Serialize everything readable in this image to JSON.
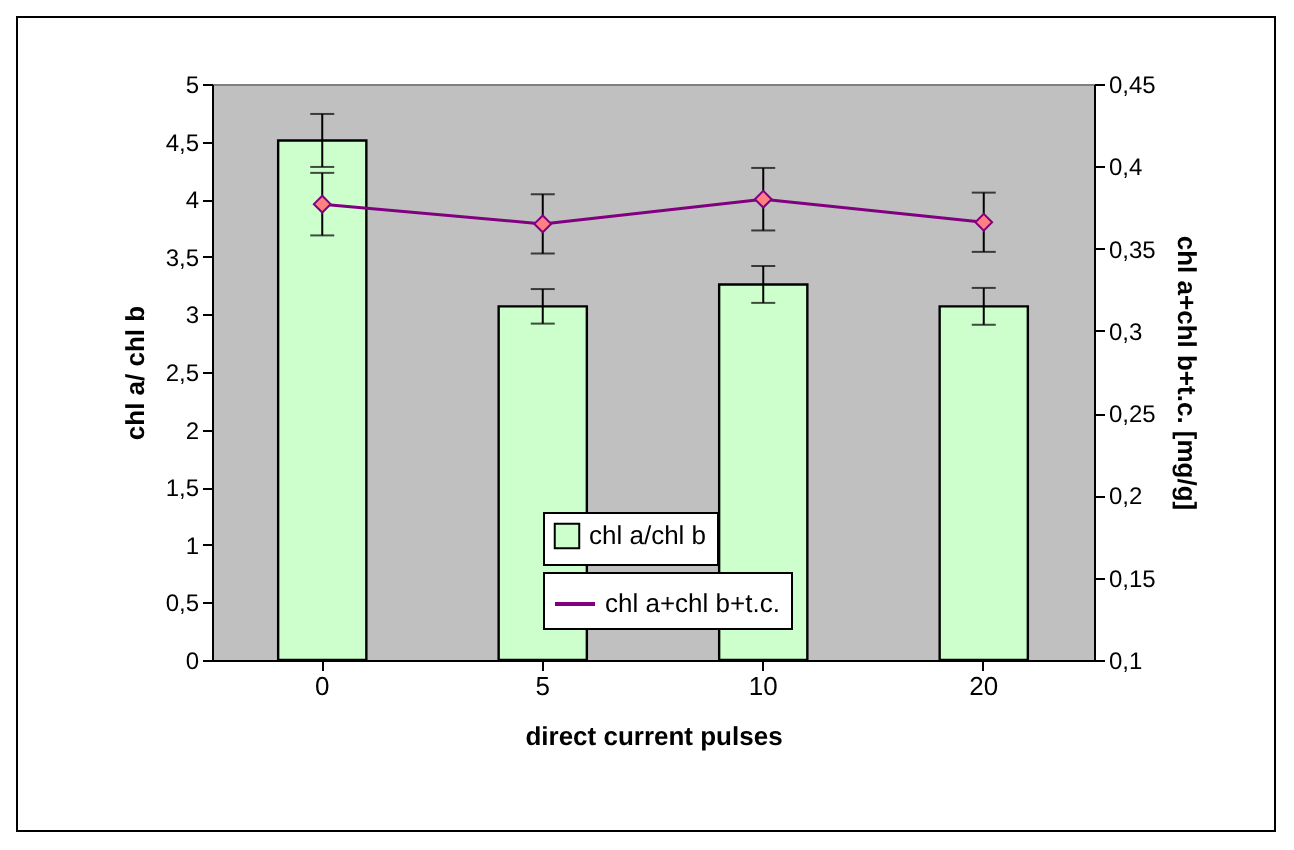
{
  "chart_data": {
    "type": "bar",
    "xlabel": "direct current pulses",
    "ylabel": "chl a/ chl b",
    "y2label": "chl a+chl b+t.c. [mg/g]",
    "categories": [
      "0",
      "5",
      "10",
      "20"
    ],
    "series": [
      {
        "name": "chl a/chl b",
        "color": "#ccffcc",
        "values": [
          4.51,
          3.07,
          3.26,
          3.07
        ],
        "errors": [
          0.23,
          0.15,
          0.16,
          0.16
        ]
      },
      {
        "name": "chl a+chl b+t.c.",
        "type": "line",
        "axis": "y2",
        "color": "#800080",
        "values": [
          0.377,
          0.365,
          0.38,
          0.366
        ],
        "errors": [
          0.019,
          0.018,
          0.019,
          0.018
        ]
      }
    ],
    "ylim": [
      0,
      5
    ],
    "yticks": [
      0,
      {
        "value": 0.5,
        "label": "0,5"
      },
      1,
      {
        "value": 1.5,
        "label": "1,5"
      },
      2,
      {
        "value": 2.5,
        "label": "2,5"
      },
      3,
      {
        "value": 3.5,
        "label": "3,5"
      },
      4,
      {
        "value": 4.5,
        "label": "4,5"
      },
      5
    ],
    "y2lim": [
      0.1,
      0.45
    ],
    "y2ticks": [
      {
        "value": 0.1,
        "label": "0,1"
      },
      {
        "value": 0.15,
        "label": "0,15"
      },
      {
        "value": 0.2,
        "label": "0,2"
      },
      {
        "value": 0.25,
        "label": "0,25"
      },
      {
        "value": 0.3,
        "label": "0,3"
      },
      {
        "value": 0.35,
        "label": "0,35"
      },
      {
        "value": 0.4,
        "label": "0,4"
      },
      {
        "value": 0.45,
        "label": "0,45"
      }
    ],
    "legend": "bottom",
    "marker": "diamond"
  }
}
